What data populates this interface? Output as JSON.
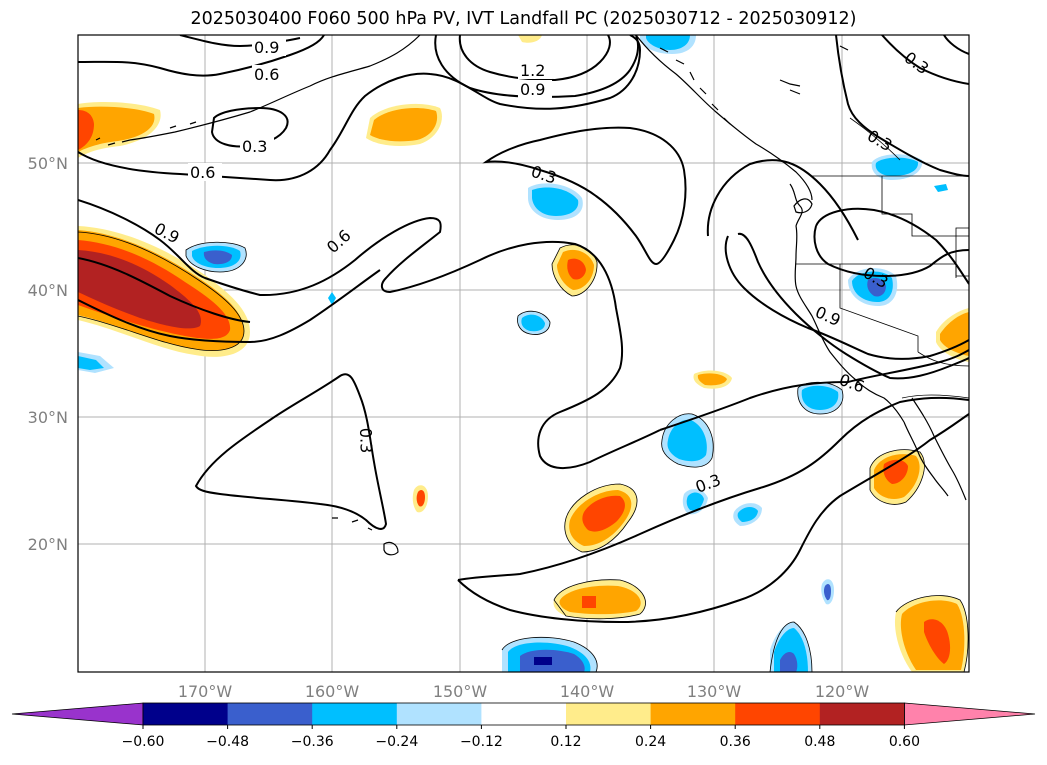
{
  "title": "2025030400 F060 500 hPa PV, IVT Landfall PC (2025030712 - 2025030912)",
  "map": {
    "lat_labels": [
      "50°N",
      "40°N",
      "30°N",
      "20°N"
    ],
    "lon_labels": [
      "170°W",
      "160°W",
      "150°W",
      "140°W",
      "130°W",
      "120°W"
    ],
    "contour_labels": [
      "0.9",
      "0.6",
      "0.3",
      "0.6",
      "0.9",
      "0.6",
      "1.2",
      "0.9",
      "0.3",
      "0.3",
      "0.3",
      "0.3",
      "0.9",
      "0.6",
      "0.3",
      "0.3"
    ]
  },
  "colorbar": {
    "tick_labels": [
      "−0.60",
      "−0.48",
      "−0.36",
      "−0.24",
      "−0.12",
      "0.12",
      "0.24",
      "0.36",
      "0.48",
      "0.60"
    ],
    "colors": [
      "#9933cc",
      "#00008b",
      "#3a5fcd",
      "#00bfff",
      "#b0e2ff",
      "#ffffff",
      "#ffec8b",
      "#ffa500",
      "#ff4500",
      "#b22222",
      "#ff82ab"
    ]
  }
}
